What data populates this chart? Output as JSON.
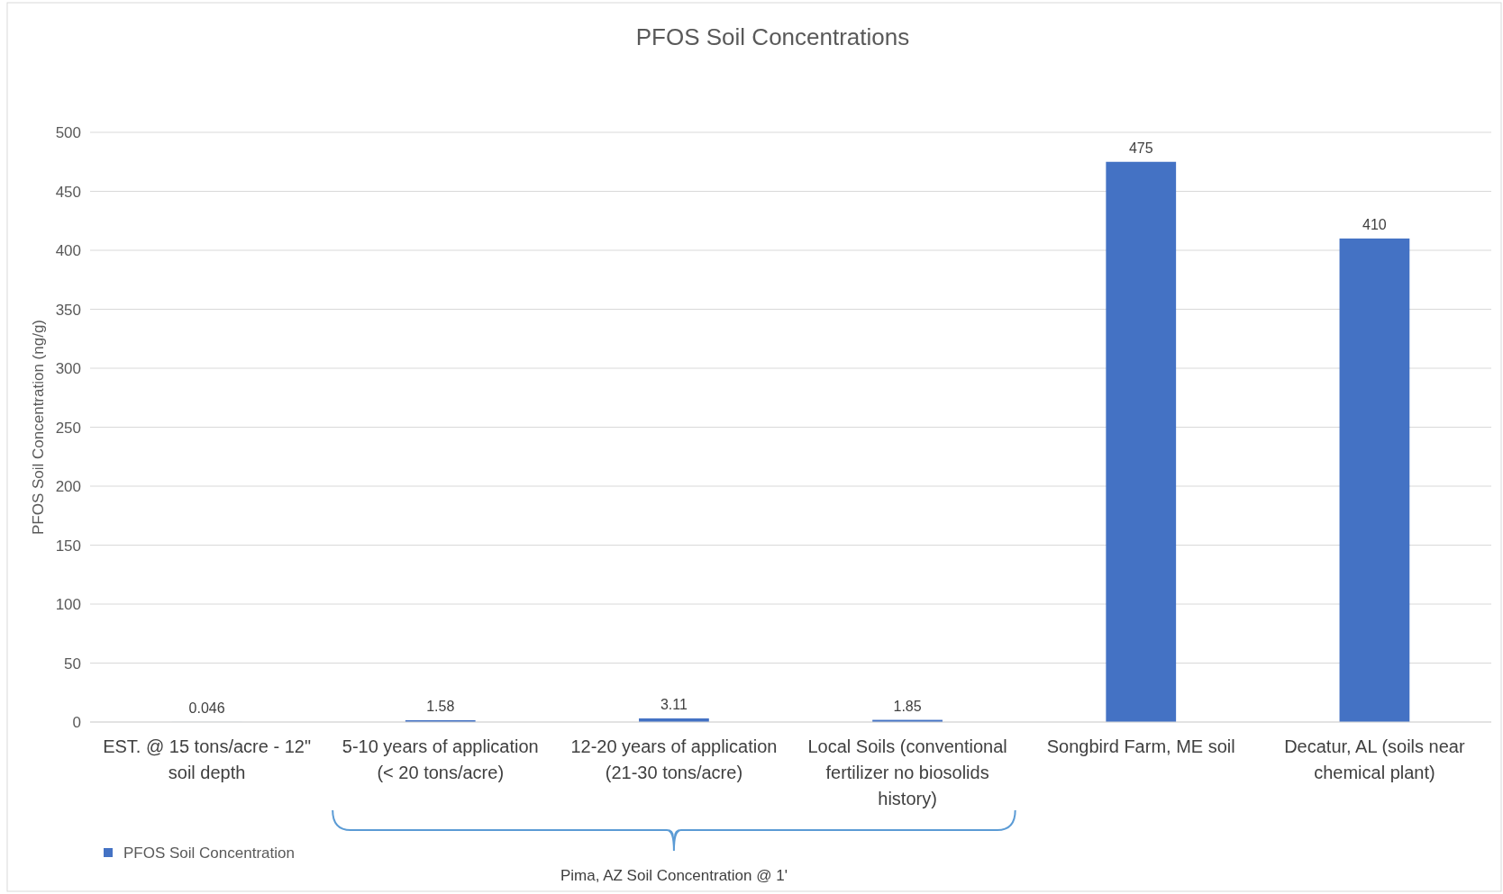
{
  "chart_data": {
    "type": "bar",
    "title": "PFOS Soil Concentrations",
    "ylabel": "PFOS Soil Concentration (ng/g)",
    "categories": [
      "EST. @ 15 tons/acre - 12\" soil  depth",
      "5-10 years of application (< 20 tons/acre)",
      "12-20 years of application (21-30 tons/acre)",
      "Local Soils (conventional fertilizer no biosolids history)",
      "Songbird Farm, ME soil",
      "Decatur, AL (soils near chemical plant)"
    ],
    "series": [
      {
        "name": "PFOS Soil Concentration",
        "color": "#4472c4",
        "values": [
          0.046,
          1.58,
          3.11,
          1.85,
          475,
          410
        ]
      }
    ],
    "ylim": [
      0,
      500
    ],
    "yticks": [
      0,
      50,
      100,
      150,
      200,
      250,
      300,
      350,
      400,
      450,
      500
    ],
    "grid": "y",
    "data_labels": true,
    "legend": "bottom left",
    "annotations": [
      "Pima, AZ Soil Concentration @ 1'"
    ]
  }
}
